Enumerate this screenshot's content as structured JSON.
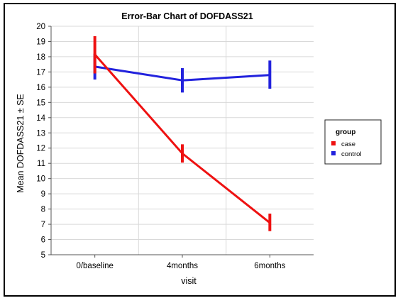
{
  "chart_data": {
    "type": "line",
    "title": "Error-Bar Chart of DOFDASS21",
    "xlabel": "visit",
    "ylabel": "Mean DOFDASS21 ± SE",
    "categories": [
      "0/baseline",
      "4months",
      "6months"
    ],
    "ylim": [
      5,
      20
    ],
    "yticks": [
      5,
      6,
      7,
      8,
      9,
      10,
      11,
      12,
      13,
      14,
      15,
      16,
      17,
      18,
      19,
      20
    ],
    "grid": true,
    "legend": {
      "title": "group",
      "placement": "right"
    },
    "series": [
      {
        "name": "case",
        "color": "#ee1111",
        "values": [
          18.15,
          11.65,
          7.1
        ],
        "lower": [
          16.9,
          11.05,
          6.55
        ],
        "upper": [
          19.35,
          12.25,
          7.7
        ]
      },
      {
        "name": "control",
        "color": "#2222dd",
        "values": [
          17.35,
          16.45,
          16.8
        ],
        "lower": [
          16.5,
          15.65,
          15.9
        ],
        "upper": [
          18.2,
          17.25,
          17.75
        ]
      }
    ]
  }
}
